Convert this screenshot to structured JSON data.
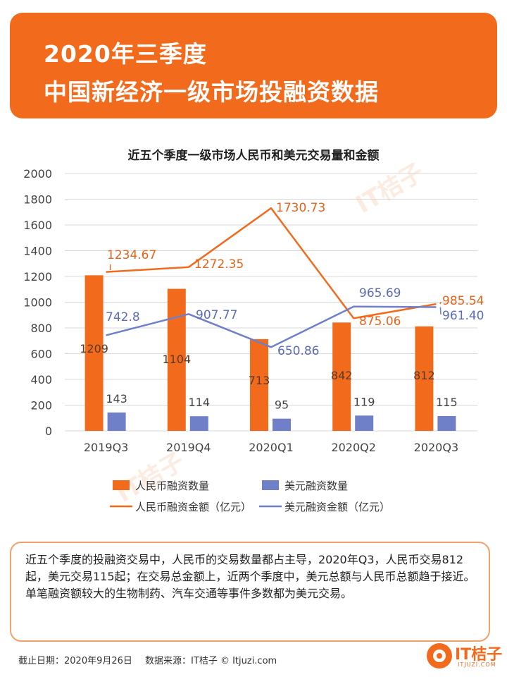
{
  "header": {
    "line1": "2020年三季度",
    "line2": "中国新经济一级市场投融资数据"
  },
  "chart_data": {
    "type": "bar",
    "title": "近五个季度一级市场人民币和美元交易量和金额",
    "categories": [
      "2019Q3",
      "2019Q4",
      "2020Q1",
      "2020Q2",
      "2020Q3"
    ],
    "ylim": [
      0,
      2000
    ],
    "yticks": [
      0,
      200,
      400,
      600,
      800,
      1000,
      1200,
      1400,
      1600,
      1800,
      2000
    ],
    "grid": true,
    "legend_position": "bottom",
    "series": [
      {
        "name": "人民币融资数量",
        "kind": "bar",
        "color": "#f26b1d",
        "values": [
          1209,
          1104,
          713,
          842,
          812
        ],
        "labels": [
          "1209",
          "1104",
          "713",
          "842",
          "812"
        ]
      },
      {
        "name": "美元融资数量",
        "kind": "bar",
        "color": "#6f7fc8",
        "values": [
          143,
          114,
          95,
          119,
          115
        ],
        "labels": [
          "143",
          "114",
          "95",
          "119",
          "115"
        ]
      },
      {
        "name": "人民币融资金额（亿元）",
        "kind": "line",
        "color": "#f26b1d",
        "values": [
          1234.67,
          1272.35,
          1730.73,
          875.06,
          985.54
        ],
        "labels": [
          "1234.67",
          "1272.35",
          "1730.73",
          "875.06",
          "985.54"
        ]
      },
      {
        "name": "美元融资金额（亿元）",
        "kind": "line",
        "color": "#6f7fc8",
        "values": [
          742.8,
          907.77,
          650.86,
          965.69,
          961.4
        ],
        "labels": [
          "742.8",
          "907.77",
          "650.86",
          "965.69",
          "961.40"
        ]
      }
    ]
  },
  "summary": {
    "text": "近五个季度的投融资交易中，人民币的交易数量都占主导，2020年Q3，人民币交易812起，美元交易115起；在交易总金额上，近两个季度中，美元总额与人民币总额趋于接近。\n单笔融资额较大的生物制药、汽车交通等事件多数都为美元交易。"
  },
  "footer": {
    "date": "截止日期：2020年9月26日",
    "source": "数据来源：IT桔子 © Itjuzi.com"
  },
  "logo": {
    "name": "IT桔子",
    "url": "ITJUZI.COM",
    "icon": "orange-slice-icon"
  },
  "watermark": "IT桔子",
  "colors": {
    "accent": "#f26b1d",
    "blue": "#6f7fc8"
  }
}
